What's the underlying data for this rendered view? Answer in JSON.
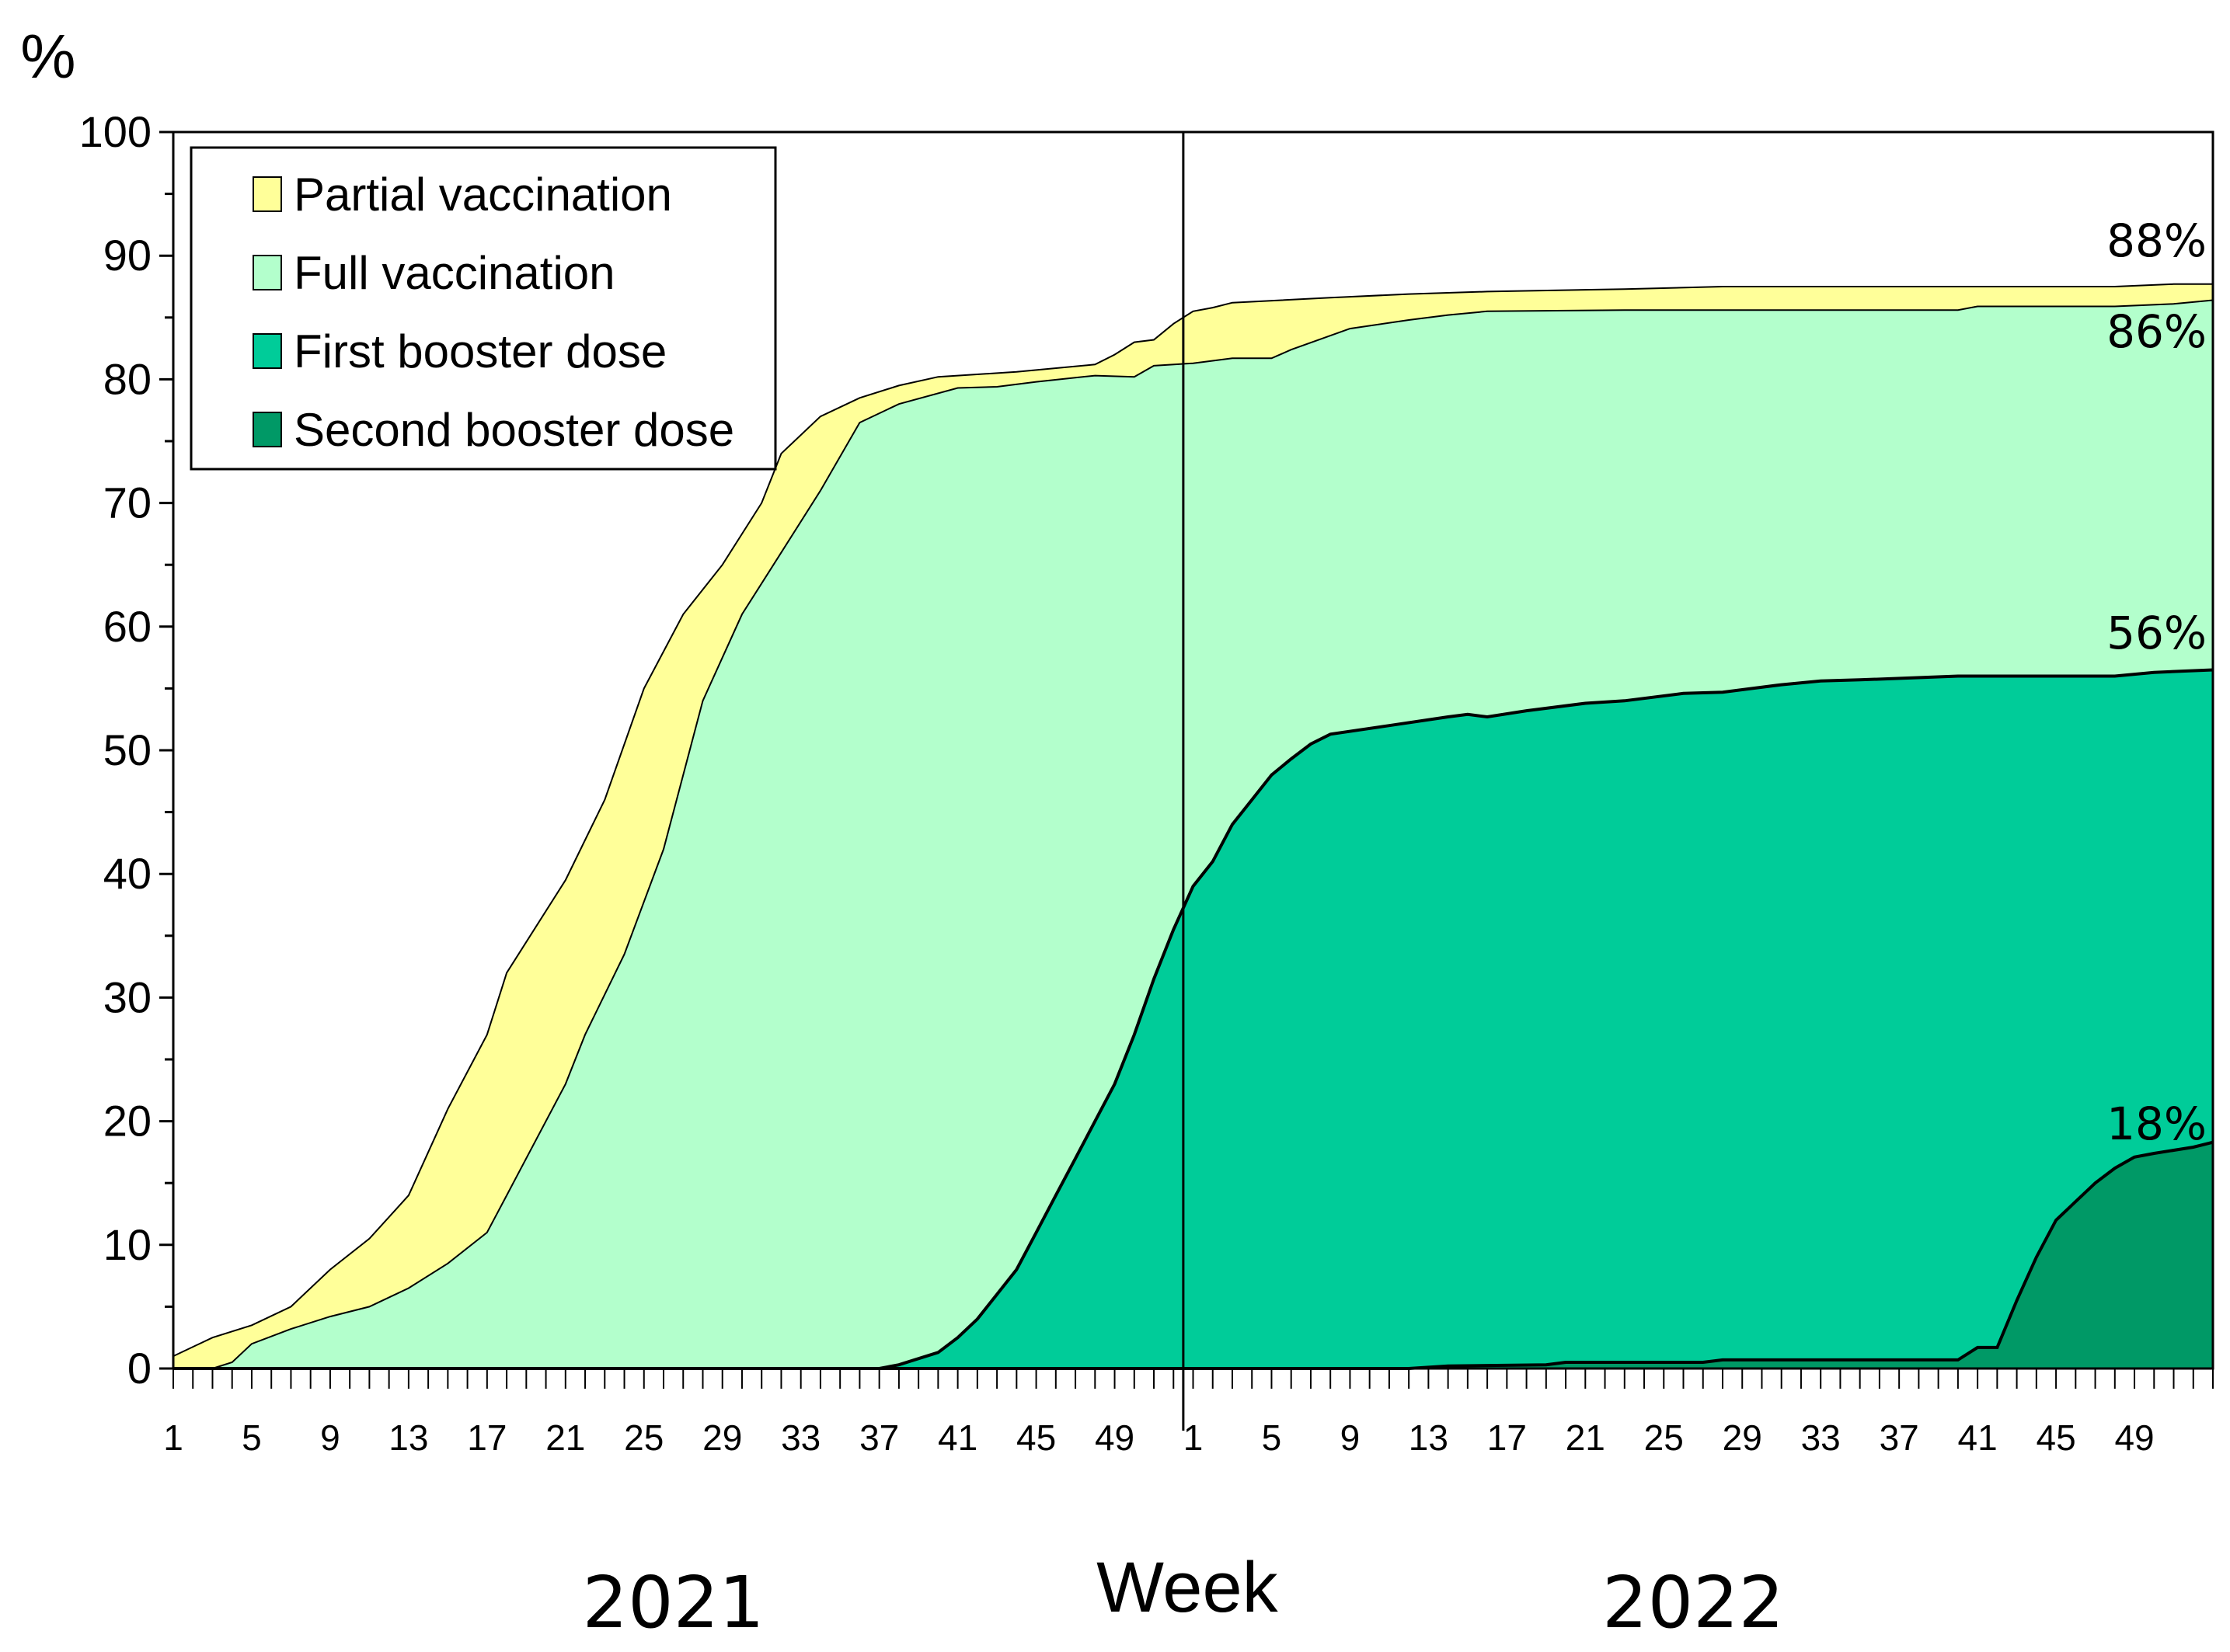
{
  "chart_data": {
    "type": "area",
    "ylabel": "%",
    "xlabel": "Week",
    "ylim": [
      0,
      100
    ],
    "yticks": [
      0,
      10,
      20,
      30,
      40,
      50,
      60,
      70,
      80,
      90,
      100
    ],
    "years": [
      "2021",
      "2022"
    ],
    "week_tick_labels": [
      "1",
      "5",
      "9",
      "13",
      "17",
      "21",
      "25",
      "29",
      "33",
      "37",
      "41",
      "45",
      "49"
    ],
    "legend_position": "top-left",
    "colors": {
      "partial": "#ffff99",
      "full": "#b3ffcc",
      "first_booster": "#00cc99",
      "second_booster": "#009966"
    },
    "series": [
      {
        "name": "Partial vaccination",
        "end_label": "88%",
        "points": [
          [
            1,
            1
          ],
          [
            3,
            2.5
          ],
          [
            5,
            3.5
          ],
          [
            7,
            5
          ],
          [
            9,
            8
          ],
          [
            11,
            10.5
          ],
          [
            13,
            14
          ],
          [
            15,
            21
          ],
          [
            17,
            27
          ],
          [
            18,
            32
          ],
          [
            21,
            39.5
          ],
          [
            23,
            46
          ],
          [
            25,
            55
          ],
          [
            27,
            61
          ],
          [
            29,
            65
          ],
          [
            31,
            70
          ],
          [
            32,
            74
          ],
          [
            34,
            77
          ],
          [
            36,
            78.5
          ],
          [
            38,
            79.5
          ],
          [
            40,
            80.2
          ],
          [
            44,
            80.6
          ],
          [
            48,
            81.2
          ],
          [
            49,
            82
          ],
          [
            50,
            83
          ],
          [
            51,
            83.2
          ],
          [
            52,
            84.5
          ],
          [
            53,
            85.5
          ],
          [
            54,
            85.8
          ],
          [
            55,
            86.2
          ],
          [
            60,
            86.6
          ],
          [
            64,
            86.9
          ],
          [
            68,
            87.1
          ],
          [
            75,
            87.3
          ],
          [
            80,
            87.5
          ],
          [
            90,
            87.5
          ],
          [
            100,
            87.5
          ],
          [
            103,
            87.7
          ],
          [
            105,
            87.7
          ]
        ]
      },
      {
        "name": "Full vaccination",
        "end_label": "86%",
        "points": [
          [
            1,
            0
          ],
          [
            3,
            0
          ],
          [
            4,
            0.5
          ],
          [
            5,
            2
          ],
          [
            7,
            3.2
          ],
          [
            9,
            4.2
          ],
          [
            11,
            5
          ],
          [
            13,
            6.5
          ],
          [
            15,
            8.5
          ],
          [
            17,
            11
          ],
          [
            18,
            14
          ],
          [
            21,
            23
          ],
          [
            22,
            27
          ],
          [
            24,
            33.5
          ],
          [
            26,
            42
          ],
          [
            28,
            54
          ],
          [
            30,
            61
          ],
          [
            32,
            66
          ],
          [
            34,
            71
          ],
          [
            36,
            76.5
          ],
          [
            38,
            78
          ],
          [
            41,
            79.3
          ],
          [
            43,
            79.4
          ],
          [
            45,
            79.8
          ],
          [
            48,
            80.3
          ],
          [
            50,
            80.2
          ],
          [
            51,
            81.1
          ],
          [
            53,
            81.3
          ],
          [
            55,
            81.7
          ],
          [
            57,
            81.7
          ],
          [
            58,
            82.4
          ],
          [
            61,
            84.1
          ],
          [
            64,
            84.8
          ],
          [
            66,
            85.2
          ],
          [
            68,
            85.5
          ],
          [
            75,
            85.6
          ],
          [
            80,
            85.6
          ],
          [
            92,
            85.6
          ],
          [
            93,
            85.9
          ],
          [
            100,
            85.9
          ],
          [
            103,
            86.1
          ],
          [
            105,
            86.4
          ]
        ]
      },
      {
        "name": "First booster dose",
        "end_label": "56%",
        "points": [
          [
            1,
            0
          ],
          [
            37,
            0
          ],
          [
            38,
            0.3
          ],
          [
            40,
            1.3
          ],
          [
            41,
            2.5
          ],
          [
            42,
            4
          ],
          [
            43,
            6
          ],
          [
            44,
            8
          ],
          [
            45,
            11
          ],
          [
            46,
            14
          ],
          [
            47,
            17
          ],
          [
            48,
            20
          ],
          [
            49,
            23
          ],
          [
            50,
            27
          ],
          [
            51,
            31.5
          ],
          [
            52,
            35.5
          ],
          [
            53,
            39
          ],
          [
            54,
            41
          ],
          [
            55,
            44
          ],
          [
            56,
            46
          ],
          [
            57,
            48
          ],
          [
            58,
            49.3
          ],
          [
            59,
            50.5
          ],
          [
            60,
            51.3
          ],
          [
            63,
            52
          ],
          [
            66,
            52.7
          ],
          [
            67,
            52.9
          ],
          [
            68,
            52.7
          ],
          [
            70,
            53.2
          ],
          [
            73,
            53.8
          ],
          [
            75,
            54
          ],
          [
            78,
            54.6
          ],
          [
            80,
            54.7
          ],
          [
            83,
            55.3
          ],
          [
            85,
            55.6
          ],
          [
            87,
            55.7
          ],
          [
            92,
            56
          ],
          [
            96,
            56
          ],
          [
            100,
            56
          ],
          [
            102,
            56.3
          ],
          [
            105,
            56.5
          ]
        ]
      },
      {
        "name": "Second booster dose",
        "end_label": "18%",
        "points": [
          [
            1,
            0
          ],
          [
            64,
            0
          ],
          [
            66,
            0.2
          ],
          [
            71,
            0.3
          ],
          [
            72,
            0.5
          ],
          [
            79,
            0.5
          ],
          [
            80,
            0.7
          ],
          [
            92,
            0.7
          ],
          [
            93,
            1.7
          ],
          [
            94,
            1.7
          ],
          [
            95,
            5.5
          ],
          [
            96,
            9
          ],
          [
            97,
            12
          ],
          [
            98,
            13.5
          ],
          [
            99,
            15
          ],
          [
            100,
            16.2
          ],
          [
            101,
            17.1
          ],
          [
            102,
            17.4
          ],
          [
            104,
            17.9
          ],
          [
            105,
            18.3
          ]
        ]
      }
    ]
  }
}
